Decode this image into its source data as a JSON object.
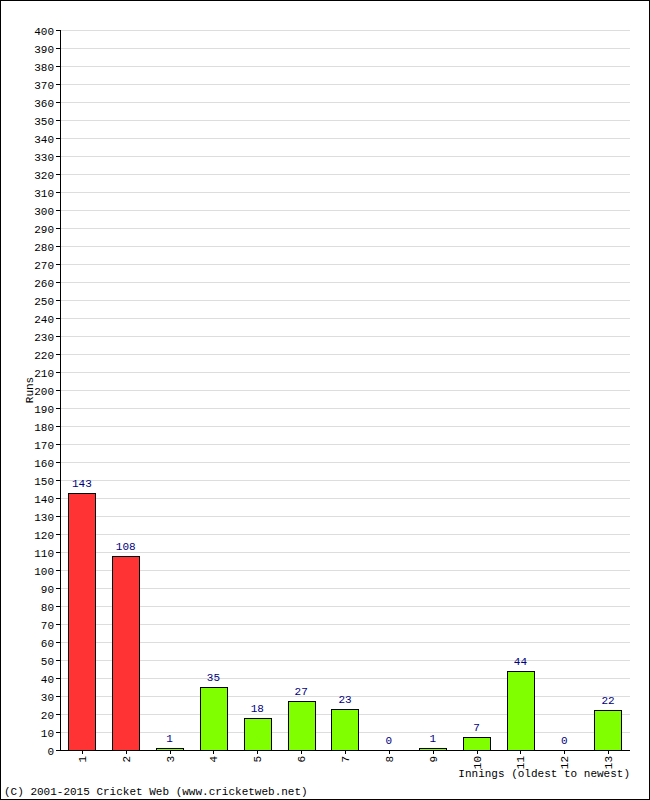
{
  "chart_data": {
    "type": "bar",
    "categories": [
      "1",
      "2",
      "3",
      "4",
      "5",
      "6",
      "7",
      "8",
      "9",
      "10",
      "11",
      "12",
      "13"
    ],
    "values": [
      143,
      108,
      1,
      35,
      18,
      27,
      23,
      0,
      1,
      7,
      44,
      0,
      22
    ],
    "colors": [
      "#ff3333",
      "#ff3333",
      "#80ff00",
      "#80ff00",
      "#80ff00",
      "#80ff00",
      "#80ff00",
      "#80ff00",
      "#80ff00",
      "#80ff00",
      "#80ff00",
      "#80ff00",
      "#80ff00"
    ],
    "x_label": "Innings (oldest to newest)",
    "y_label": "Runs",
    "annotations": [
      "(C) 2001-2015 Cricket Web (www.cricketweb.net)"
    ],
    "ylim": [
      0,
      400
    ],
    "yticks": [
      0,
      10,
      20,
      30,
      40,
      50,
      60,
      70,
      80,
      90,
      100,
      110,
      120,
      130,
      140,
      150,
      160,
      170,
      180,
      190,
      200,
      210,
      220,
      230,
      240,
      250,
      260,
      270,
      280,
      290,
      300,
      310,
      320,
      330,
      340,
      350,
      360,
      370,
      380,
      390,
      400
    ],
    "grid": true,
    "data_labels": true
  }
}
